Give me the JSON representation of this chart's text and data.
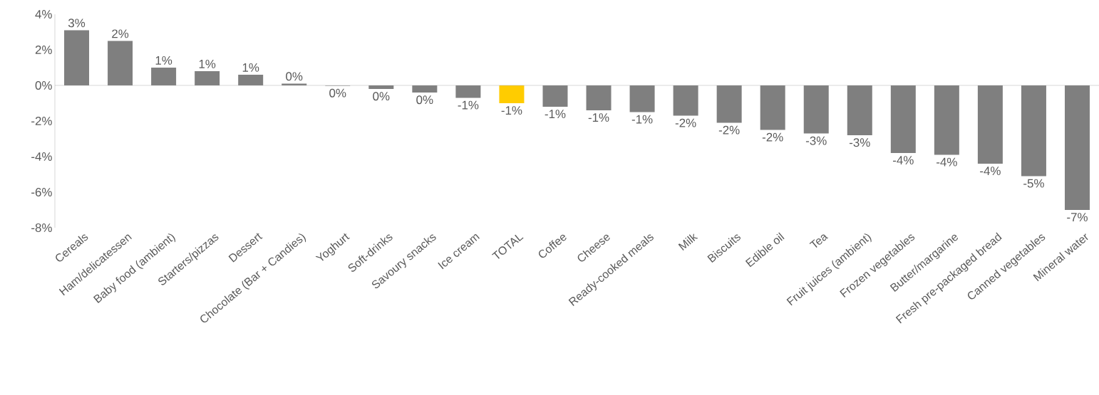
{
  "chart_data": {
    "type": "bar",
    "categories": [
      "Cereals",
      "Ham/delicatessen",
      "Baby food  (ambient)",
      "Starters/pizzas",
      "Dessert",
      "Chocolate (Bar + Candies)",
      "Yoghurt",
      "Soft-drinks",
      "Savoury snacks",
      "Ice cream",
      "TOTAL",
      "Coffee",
      "Cheese",
      "Ready-cooked meals",
      "Milk",
      "Biscuits",
      "Edible oil",
      "Tea",
      "Fruit juices (ambient)",
      "Frozen vegetables",
      "Butter/margarine",
      "Fresh pre-packaged bread",
      "Canned vegetables",
      "Mineral water"
    ],
    "values": [
      3.1,
      2.5,
      1.0,
      0.8,
      0.6,
      0.1,
      -0.02,
      -0.2,
      -0.4,
      -0.7,
      -1.0,
      -1.2,
      -1.4,
      -1.5,
      -1.7,
      -2.1,
      -2.5,
      -2.7,
      -2.8,
      -3.8,
      -3.9,
      -4.4,
      -5.1,
      -7.0
    ],
    "value_labels": [
      "3%",
      "2%",
      "1%",
      "1%",
      "1%",
      "0%",
      "0%",
      "0%",
      "0%",
      "-1%",
      "-1%",
      "-1%",
      "-1%",
      "-1%",
      "-2%",
      "-2%",
      "-2%",
      "-3%",
      "-3%",
      "-4%",
      "-4%",
      "-4%",
      "-5%",
      "-7%"
    ],
    "colors": [
      "#7f7f7f",
      "#7f7f7f",
      "#7f7f7f",
      "#7f7f7f",
      "#7f7f7f",
      "#7f7f7f",
      "#7f7f7f",
      "#7f7f7f",
      "#7f7f7f",
      "#7f7f7f",
      "#ffcc00",
      "#7f7f7f",
      "#7f7f7f",
      "#7f7f7f",
      "#7f7f7f",
      "#7f7f7f",
      "#7f7f7f",
      "#7f7f7f",
      "#7f7f7f",
      "#7f7f7f",
      "#7f7f7f",
      "#7f7f7f",
      "#7f7f7f",
      "#7f7f7f"
    ],
    "ylim": [
      -8,
      4
    ],
    "yticks": [
      {
        "value": 4,
        "label": "4%"
      },
      {
        "value": 2,
        "label": "2%"
      },
      {
        "value": 0,
        "label": "0%"
      },
      {
        "value": -2,
        "label": "-2%"
      },
      {
        "value": -4,
        "label": "-4%"
      },
      {
        "value": -6,
        "label": "-6%"
      },
      {
        "value": -8,
        "label": "-8%"
      }
    ]
  }
}
